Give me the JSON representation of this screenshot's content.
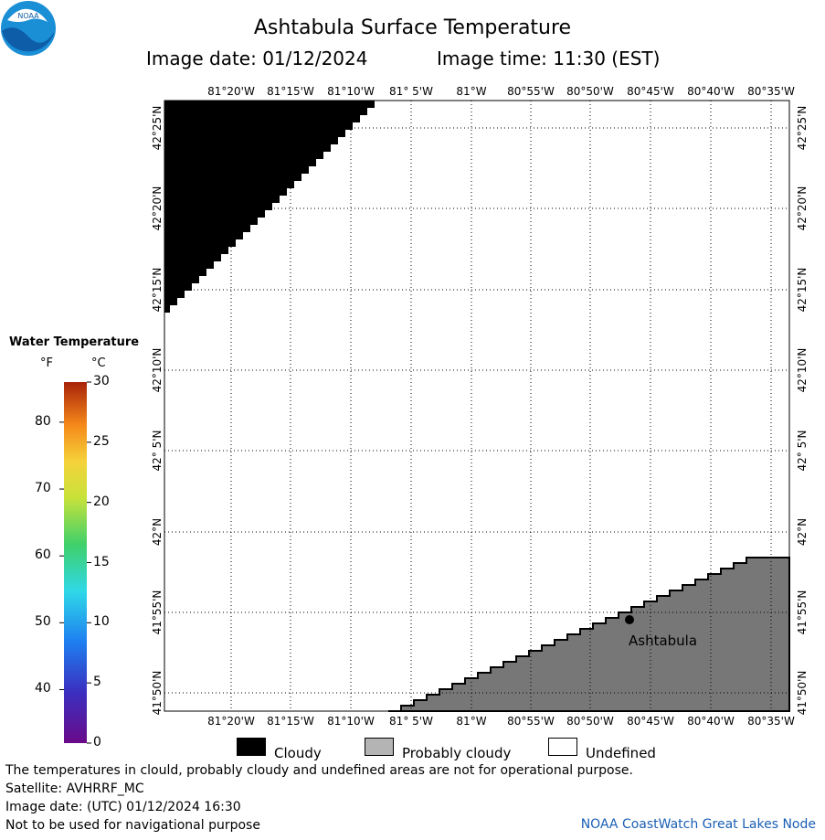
{
  "header": {
    "title": "Ashtabula Surface Temperature",
    "image_date_label": "Image date: 01/12/2024",
    "image_time_label": "Image time: 11:30 (EST)"
  },
  "logo": {
    "text": "NOAA"
  },
  "map": {
    "lon_labels": [
      "81°20'W",
      "81°15'W",
      "81°10'W",
      "81° 5'W",
      "81°W",
      "80°55'W",
      "80°50'W",
      "80°45'W",
      "80°40'W",
      "80°35'W"
    ],
    "lat_labels": [
      "42°25'N",
      "42°20'N",
      "42°15'N",
      "42°10'N",
      "42° 5'N",
      "42°N",
      "41°55'N",
      "41°50'N"
    ],
    "place_label": "Ashtabula",
    "colors": {
      "cloudy": "#000000",
      "probably_cloudy": "#777777",
      "undefined": "#ffffff",
      "grid": "#000000"
    }
  },
  "legend": {
    "title": "Water Temperature",
    "unit_f": "°F",
    "unit_c": "°C",
    "f_ticks": [
      "80",
      "70",
      "60",
      "50",
      "40"
    ],
    "c_ticks": [
      "30",
      "25",
      "20",
      "15",
      "10",
      "5",
      "0"
    ]
  },
  "key": {
    "cloudy": "Cloudy",
    "probably_cloudy": "Probably cloudy",
    "undefined": "Undefined"
  },
  "footer": {
    "line1": "The temperatures in clould, probably cloudy and undefined areas are not for operational purpose.",
    "line2": "Satellite: AVHRRF_MC",
    "line3": "Image date: (UTC) 01/12/2024  16:30",
    "line4": "Not to be used for navigational purpose",
    "credit": "NOAA CoastWatch Great Lakes Node"
  }
}
